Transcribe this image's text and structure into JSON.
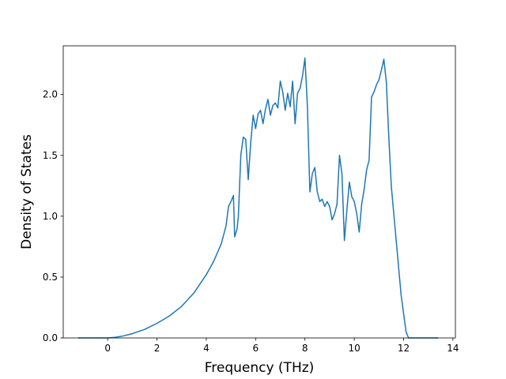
{
  "chart_data": {
    "type": "line",
    "title": "",
    "xlabel": "Frequency (THz)",
    "ylabel": "Density of States",
    "xlim": [
      -1.8,
      14.1
    ],
    "ylim": [
      0,
      2.4
    ],
    "xticks": [
      0,
      2,
      4,
      6,
      8,
      10,
      12,
      14
    ],
    "yticks": [
      0.0,
      0.5,
      1.0,
      1.5,
      2.0
    ],
    "xtick_labels": [
      "0",
      "2",
      "4",
      "6",
      "8",
      "10",
      "12",
      "14"
    ],
    "ytick_labels": [
      "0.0",
      "0.5",
      "1.0",
      "1.5",
      "2.0"
    ],
    "grid": false,
    "legend": "none",
    "series": [
      {
        "color": "#1f77b4",
        "x": [
          -1.2,
          -0.5,
          0.0,
          0.3,
          0.6,
          1.0,
          1.5,
          2.0,
          2.5,
          3.0,
          3.5,
          4.0,
          4.3,
          4.6,
          4.8,
          4.9,
          5.0,
          5.1,
          5.15,
          5.25,
          5.3,
          5.4,
          5.5,
          5.6,
          5.7,
          5.8,
          5.9,
          6.0,
          6.1,
          6.2,
          6.3,
          6.4,
          6.5,
          6.6,
          6.7,
          6.8,
          6.9,
          7.0,
          7.1,
          7.2,
          7.3,
          7.4,
          7.5,
          7.6,
          7.7,
          7.8,
          7.9,
          8.0,
          8.1,
          8.2,
          8.3,
          8.4,
          8.5,
          8.6,
          8.7,
          8.8,
          8.9,
          9.0,
          9.1,
          9.2,
          9.3,
          9.4,
          9.5,
          9.6,
          9.7,
          9.8,
          9.9,
          10.0,
          10.1,
          10.2,
          10.3,
          10.4,
          10.5,
          10.6,
          10.7,
          10.8,
          10.9,
          11.0,
          11.1,
          11.2,
          11.3,
          11.4,
          11.5,
          11.7,
          11.9,
          12.1,
          12.2,
          12.25,
          12.5,
          13.0,
          13.4
        ],
        "y": [
          0.0,
          0.0,
          0.0,
          0.005,
          0.015,
          0.035,
          0.07,
          0.12,
          0.18,
          0.26,
          0.37,
          0.52,
          0.63,
          0.77,
          0.92,
          1.08,
          1.12,
          1.17,
          0.83,
          0.9,
          1.0,
          1.5,
          1.65,
          1.63,
          1.3,
          1.6,
          1.83,
          1.72,
          1.84,
          1.87,
          1.76,
          1.88,
          1.96,
          1.83,
          1.91,
          1.93,
          1.89,
          2.11,
          2.02,
          1.87,
          2.01,
          1.9,
          2.11,
          1.76,
          2.01,
          2.05,
          2.15,
          2.3,
          1.9,
          1.2,
          1.35,
          1.4,
          1.2,
          1.12,
          1.14,
          1.08,
          1.12,
          1.08,
          0.97,
          1.02,
          1.1,
          1.5,
          1.35,
          0.8,
          1.05,
          1.28,
          1.16,
          1.12,
          1.02,
          0.87,
          1.1,
          1.22,
          1.38,
          1.46,
          1.98,
          2.02,
          2.08,
          2.12,
          2.2,
          2.29,
          2.1,
          1.65,
          1.25,
          0.8,
          0.35,
          0.05,
          0.0,
          0.0,
          0.0,
          0.0,
          0.0
        ]
      }
    ]
  }
}
